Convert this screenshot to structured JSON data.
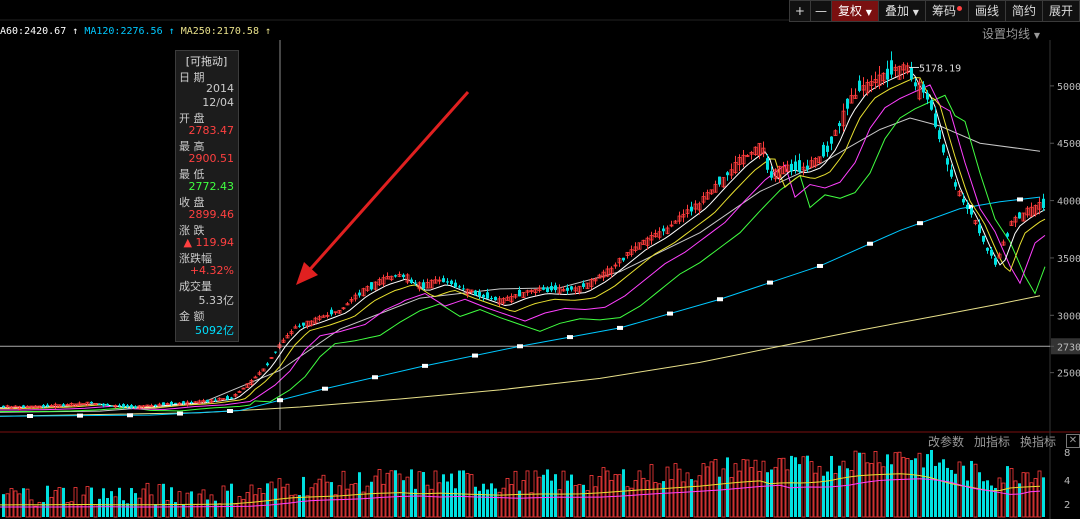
{
  "toolbar": {
    "plus": "+",
    "minus": "—",
    "fuquan": "复权",
    "overlay": "叠加",
    "chips": "筹码",
    "draw": "画线",
    "simple": "简约",
    "expand": "展开",
    "fuquan_active": true
  },
  "ma_legend": [
    {
      "text": "A60:2420.67",
      "color": "#ffffff"
    },
    {
      "text": "MA120:2276.56",
      "color": "#00c8ff"
    },
    {
      "text": "MA250:2170.58",
      "color": "#e8e08a"
    }
  ],
  "settings_label": "设置均线",
  "tooltip": {
    "header": "[可拖动]",
    "date_label": "日  期",
    "date_year": "2014",
    "date_md": "12/04",
    "open_label": "开  盘",
    "open": "2783.47",
    "high_label": "最  高",
    "high": "2900.51",
    "low_label": "最  低",
    "low": "2772.43",
    "close_label": "收  盘",
    "close": "2899.46",
    "change_label": "涨  跌",
    "change": "▲ 119.94",
    "pct_label": "涨跌幅",
    "pct": "+4.32%",
    "volume_label": "成交量",
    "volume": "5.33亿",
    "amount_label": "金  额",
    "amount": "5092亿"
  },
  "indicator_bar": {
    "params": "改参数",
    "add": "加指标",
    "switch": "换指标",
    "close": "✕"
  },
  "colors": {
    "up": "#ff3c3c",
    "down": "#00e0e0",
    "ma5": "#ffffff",
    "ma10": "#e8e030",
    "ma20": "#ff40ff",
    "ma30": "#40ff40",
    "ma60": "#c8c8c8",
    "ma120": "#00c8ff",
    "ma250": "#e8e08a",
    "crosshair": "#ffffff",
    "arrow": "#e02020"
  },
  "chart_data": {
    "type": "candlestick",
    "y_ticks": [
      "5000",
      "4500",
      "4000",
      "3500",
      "3000",
      "2730",
      "2500"
    ],
    "y_range": [
      2000,
      5400
    ],
    "peak_label": "5178.19",
    "highlight_price": "2730",
    "price_path": [
      [
        0,
        2200
      ],
      [
        30,
        2205
      ],
      [
        60,
        2215
      ],
      [
        90,
        2235
      ],
      [
        110,
        2210
      ],
      [
        140,
        2205
      ],
      [
        170,
        2230
      ],
      [
        200,
        2245
      ],
      [
        230,
        2280
      ],
      [
        250,
        2420
      ],
      [
        265,
        2560
      ],
      [
        280,
        2760
      ],
      [
        295,
        2900
      ],
      [
        315,
        2960
      ],
      [
        340,
        3050
      ],
      [
        360,
        3200
      ],
      [
        380,
        3300
      ],
      [
        400,
        3360
      ],
      [
        420,
        3250
      ],
      [
        440,
        3310
      ],
      [
        460,
        3240
      ],
      [
        480,
        3180
      ],
      [
        500,
        3120
      ],
      [
        520,
        3190
      ],
      [
        540,
        3230
      ],
      [
        560,
        3220
      ],
      [
        580,
        3240
      ],
      [
        600,
        3340
      ],
      [
        620,
        3480
      ],
      [
        640,
        3620
      ],
      [
        660,
        3720
      ],
      [
        680,
        3850
      ],
      [
        700,
        3980
      ],
      [
        720,
        4170
      ],
      [
        740,
        4350
      ],
      [
        760,
        4480
      ],
      [
        770,
        4200
      ],
      [
        785,
        4310
      ],
      [
        800,
        4280
      ],
      [
        815,
        4330
      ],
      [
        830,
        4500
      ],
      [
        845,
        4800
      ],
      [
        860,
        4980
      ],
      [
        875,
        5060
      ],
      [
        890,
        5120
      ],
      [
        905,
        5178
      ],
      [
        915,
        5000
      ],
      [
        925,
        4950
      ],
      [
        940,
        4500
      ],
      [
        955,
        4100
      ],
      [
        970,
        3900
      ],
      [
        985,
        3600
      ],
      [
        995,
        3450
      ],
      [
        1010,
        3800
      ],
      [
        1025,
        3900
      ],
      [
        1040,
        3970
      ]
    ],
    "ma_paths": {
      "ma60": [
        [
          0,
          2155
        ],
        [
          100,
          2165
        ],
        [
          200,
          2230
        ],
        [
          280,
          2520
        ],
        [
          340,
          2880
        ],
        [
          420,
          3150
        ],
        [
          500,
          3230
        ],
        [
          560,
          3240
        ],
        [
          620,
          3380
        ],
        [
          700,
          3720
        ],
        [
          760,
          4080
        ],
        [
          820,
          4320
        ],
        [
          880,
          4620
        ],
        [
          910,
          4720
        ],
        [
          940,
          4650
        ],
        [
          980,
          4500
        ],
        [
          1040,
          4430
        ]
      ],
      "ma120": [
        [
          0,
          2120
        ],
        [
          150,
          2130
        ],
        [
          240,
          2170
        ],
        [
          320,
          2350
        ],
        [
          420,
          2550
        ],
        [
          520,
          2730
        ],
        [
          620,
          2890
        ],
        [
          720,
          3140
        ],
        [
          820,
          3430
        ],
        [
          900,
          3740
        ],
        [
          960,
          3930
        ],
        [
          1000,
          3990
        ],
        [
          1040,
          4030
        ]
      ],
      "ma250": [
        [
          0,
          2120
        ],
        [
          200,
          2150
        ],
        [
          300,
          2200
        ],
        [
          400,
          2270
        ],
        [
          500,
          2350
        ],
        [
          600,
          2450
        ],
        [
          700,
          2590
        ],
        [
          780,
          2730
        ],
        [
          860,
          2870
        ],
        [
          940,
          3000
        ],
        [
          1000,
          3100
        ],
        [
          1040,
          3170
        ]
      ]
    },
    "ma120_markers": [
      30,
      80,
      130,
      180,
      230,
      280,
      325,
      375,
      425,
      475,
      520,
      570,
      620,
      670,
      720,
      770,
      820,
      870,
      920,
      970,
      1020
    ],
    "crosshair_x": 280,
    "vol_max": 100
  }
}
